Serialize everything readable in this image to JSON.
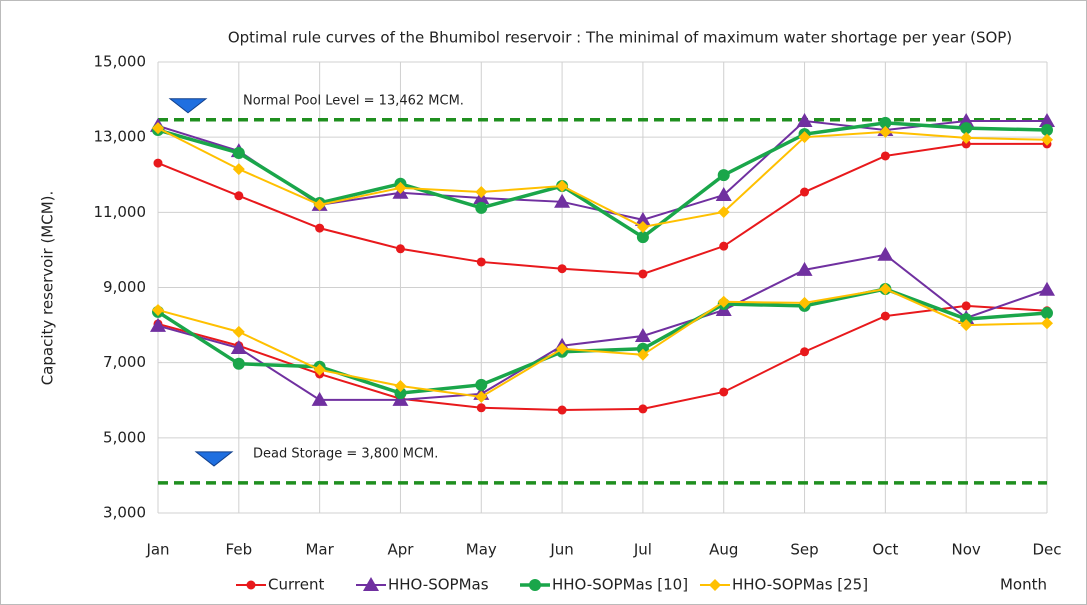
{
  "chart_data": {
    "type": "line",
    "title": "Optimal rule curves of the Bhumibol reservoir : The minimal of maximum water shortage per year (SOP)",
    "ylabel": "Capacity reservoir (MCM).",
    "xlabel": "Month",
    "categories": [
      "Jan",
      "Feb",
      "Mar",
      "Apr",
      "May",
      "Jun",
      "Jul",
      "Aug",
      "Sep",
      "Oct",
      "Nov",
      "Dec"
    ],
    "ylim": [
      3000,
      15000
    ],
    "yticks": [
      {
        "value": 3000,
        "label": "3,000"
      },
      {
        "value": 5000,
        "label": "5,000"
      },
      {
        "value": 7000,
        "label": "7,000"
      },
      {
        "value": 9000,
        "label": "9,000"
      },
      {
        "value": 11000,
        "label": "11,000"
      },
      {
        "value": 13000,
        "label": "13,000"
      },
      {
        "value": 15000,
        "label": "15,000"
      }
    ],
    "grid": true,
    "legend": "bottom",
    "series": [
      {
        "name": "Current",
        "color": "#e8191c",
        "marker": "circle",
        "upper": [
          12310,
          11440,
          10580,
          10030,
          9680,
          9500,
          9360,
          10100,
          11540,
          12500,
          12820,
          12820
        ],
        "lower": [
          8030,
          7450,
          6700,
          6040,
          5800,
          5740,
          5770,
          6220,
          7290,
          8240,
          8510,
          8380
        ]
      },
      {
        "name": "HHO-SOPMas",
        "color": "#7030a0",
        "marker": "triangle",
        "upper": [
          13300,
          12630,
          11200,
          11520,
          11380,
          11280,
          10800,
          11460,
          13430,
          13190,
          13430,
          13430
        ],
        "lower": [
          7980,
          7390,
          6010,
          6010,
          6170,
          7450,
          7710,
          8400,
          9470,
          9870,
          8190,
          8940
        ]
      },
      {
        "name": "HHO-SOPMas [10]",
        "color": "#1aa64a",
        "marker": "bigcircle",
        "upper": [
          13190,
          12580,
          11250,
          11760,
          11120,
          11700,
          10340,
          11990,
          13080,
          13380,
          13240,
          13190
        ],
        "lower": [
          8350,
          6970,
          6890,
          6190,
          6410,
          7290,
          7370,
          8560,
          8510,
          8960,
          8160,
          8320
        ]
      },
      {
        "name": "HHO-SOPMas [25]",
        "color": "#ffc000",
        "marker": "diamond",
        "upper": [
          13240,
          12150,
          11200,
          11650,
          11540,
          11700,
          10610,
          11010,
          13000,
          13140,
          12980,
          12930
        ],
        "lower": [
          8400,
          7820,
          6810,
          6380,
          6090,
          7370,
          7210,
          8620,
          8590,
          8960,
          8000,
          8050
        ]
      }
    ],
    "reference_lines": [
      {
        "value": 13462,
        "label": "Normal Pool Level = 13,462  MCM.",
        "color": "#1f8f1f"
      },
      {
        "value": 3800,
        "label": "Dead Storage = 3,800 MCM.",
        "color": "#1f8f1f"
      }
    ]
  }
}
